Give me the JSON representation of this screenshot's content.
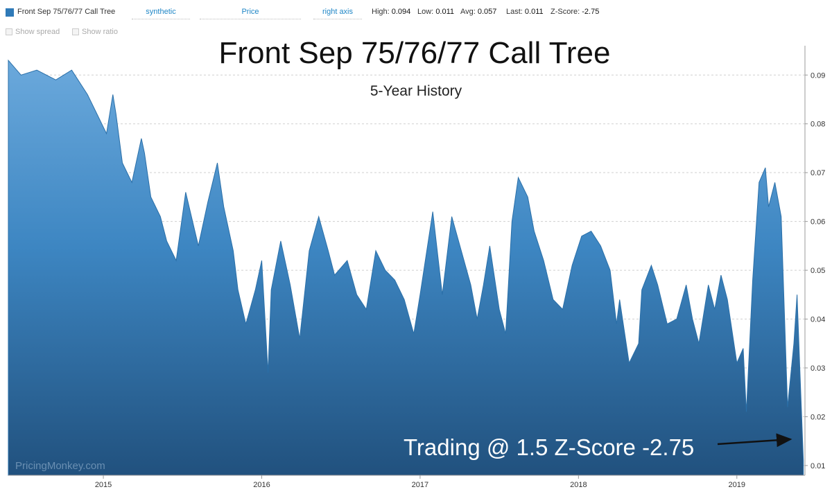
{
  "toolbar": {
    "series_name": "Front Sep 75/76/77 Call Tree",
    "series_color": "#2f7ab8",
    "type_select": "synthetic",
    "field_select": "Price",
    "axis_select": "right axis",
    "stats": {
      "high_label": "High:",
      "high_value": "0.094",
      "low_label": "Low:",
      "low_value": "0.011",
      "avg_label": "Avg:",
      "avg_value": "0.057",
      "last_label": "Last:",
      "last_value": "0.011",
      "z_label": "Z-Score:",
      "z_value": "-2.75"
    }
  },
  "options": {
    "show_spread": "Show spread",
    "show_ratio": "Show ratio"
  },
  "watermark": "PricingMonkey.com",
  "annotation": {
    "text": "Trading @ 1.5 Z-Score -2.75"
  },
  "chart_data": {
    "type": "area",
    "title": "Front Sep 75/76/77 Call Tree",
    "subtitle": "5-Year History",
    "xlabel": "",
    "ylabel": "",
    "ylim": [
      0.008,
      0.096
    ],
    "yticks": [
      0.01,
      0.02,
      0.03,
      0.04,
      0.05,
      0.06,
      0.07,
      0.08,
      0.09
    ],
    "ytick_labels": [
      "0.01",
      "0.02",
      "0.03",
      "0.04",
      "0.05",
      "0.06",
      "0.07",
      "0.08",
      "0.09"
    ],
    "xlim": [
      2014.4,
      2019.43
    ],
    "xticks": [
      2015,
      2016,
      2017,
      2018,
      2019
    ],
    "xtick_labels": [
      "2015",
      "2016",
      "2017",
      "2018",
      "2019"
    ],
    "y_axis_side": "right",
    "grid": "horizontal dashed",
    "fill_color": "#2f7ab8",
    "line_color": "#2a6fa8",
    "x": [
      2014.4,
      2014.48,
      2014.58,
      2014.7,
      2014.8,
      2014.9,
      2014.96,
      2015.02,
      2015.06,
      2015.08,
      2015.12,
      2015.18,
      2015.24,
      2015.26,
      2015.3,
      2015.36,
      2015.4,
      2015.46,
      2015.52,
      2015.6,
      2015.66,
      2015.72,
      2015.76,
      2015.82,
      2015.85,
      2015.9,
      2015.96,
      2016.0,
      2016.04,
      2016.06,
      2016.12,
      2016.18,
      2016.24,
      2016.3,
      2016.36,
      2016.42,
      2016.46,
      2016.54,
      2016.6,
      2016.66,
      2016.72,
      2016.78,
      2016.84,
      2016.9,
      2016.96,
      2017.0,
      2017.08,
      2017.14,
      2017.2,
      2017.26,
      2017.32,
      2017.36,
      2017.4,
      2017.44,
      2017.5,
      2017.54,
      2017.58,
      2017.62,
      2017.68,
      2017.72,
      2017.78,
      2017.84,
      2017.9,
      2017.96,
      2018.02,
      2018.08,
      2018.14,
      2018.2,
      2018.24,
      2018.26,
      2018.32,
      2018.38,
      2018.4,
      2018.46,
      2018.5,
      2018.56,
      2018.62,
      2018.68,
      2018.72,
      2018.76,
      2018.82,
      2018.86,
      2018.9,
      2018.94,
      2019.0,
      2019.04,
      2019.06,
      2019.1,
      2019.14,
      2019.18,
      2019.2,
      2019.24,
      2019.28,
      2019.32,
      2019.36,
      2019.38,
      2019.4,
      2019.42
    ],
    "values": [
      0.093,
      0.09,
      0.091,
      0.089,
      0.091,
      0.086,
      0.082,
      0.078,
      0.086,
      0.082,
      0.072,
      0.068,
      0.077,
      0.074,
      0.065,
      0.061,
      0.056,
      0.052,
      0.066,
      0.055,
      0.064,
      0.072,
      0.063,
      0.054,
      0.046,
      0.039,
      0.046,
      0.052,
      0.029,
      0.046,
      0.056,
      0.047,
      0.036,
      0.054,
      0.061,
      0.054,
      0.049,
      0.052,
      0.045,
      0.042,
      0.054,
      0.05,
      0.048,
      0.044,
      0.037,
      0.045,
      0.062,
      0.045,
      0.061,
      0.054,
      0.047,
      0.04,
      0.047,
      0.055,
      0.042,
      0.037,
      0.06,
      0.069,
      0.065,
      0.058,
      0.052,
      0.044,
      0.042,
      0.051,
      0.057,
      0.058,
      0.055,
      0.05,
      0.039,
      0.044,
      0.031,
      0.035,
      0.046,
      0.051,
      0.047,
      0.039,
      0.04,
      0.047,
      0.04,
      0.035,
      0.047,
      0.042,
      0.049,
      0.044,
      0.031,
      0.034,
      0.021,
      0.048,
      0.068,
      0.071,
      0.063,
      0.068,
      0.061,
      0.022,
      0.035,
      0.045,
      0.028,
      0.011
    ]
  }
}
